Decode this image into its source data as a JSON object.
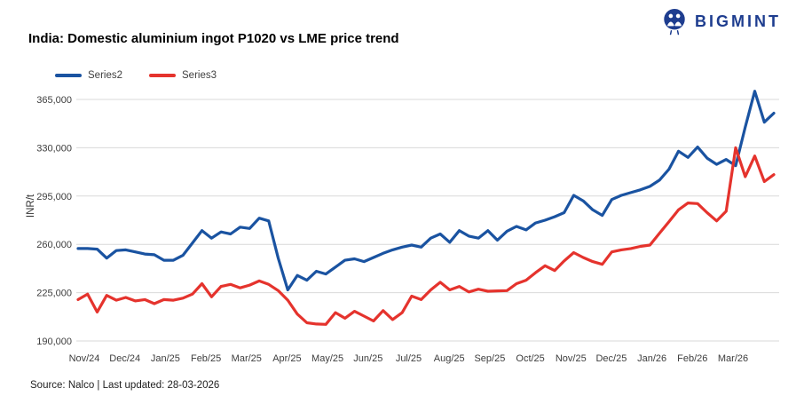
{
  "logo": {
    "text": "BIGMINT",
    "color": "#1E3D8F"
  },
  "title": "India: Domestic aluminium ingot P1020 vs LME price trend",
  "source_note": "Source: Nalco | Last updated: 28-03-2026",
  "chart_data": {
    "type": "line",
    "title": "India: Domestic aluminium ingot P1020 vs LME price trend",
    "ylabel": "INR/t",
    "xlabel": "",
    "ylim": [
      190000,
      365000
    ],
    "grid": true,
    "grid_color": "#D9D9D9",
    "legend_position": "top-left",
    "y_ticks": [
      190000,
      225000,
      260000,
      295000,
      330000,
      365000
    ],
    "y_tick_labels": [
      "190,000",
      "225,000",
      "260,000",
      "295,000",
      "330,000",
      "365,000"
    ],
    "x_labels": [
      "Nov/24",
      "Dec/24",
      "Jan/25",
      "Feb/25",
      "Mar/25",
      "Apr/25",
      "May/25",
      "Jun/25",
      "Jul/25",
      "Aug/25",
      "Sep/25",
      "Oct/25",
      "Nov/25",
      "Dec/25",
      "Jan/26",
      "Feb/26",
      "Mar/26"
    ],
    "x_unit": "weekly points, Nov 2024 - late Mar 2026",
    "series": [
      {
        "name": "Series2",
        "color": "#1A53A1",
        "values": [
          257000,
          257000,
          256500,
          250000,
          255500,
          256000,
          254500,
          253000,
          252500,
          248500,
          248500,
          252000,
          261000,
          270000,
          264500,
          269000,
          267500,
          272500,
          271500,
          279000,
          277000,
          250000,
          227000,
          237500,
          234000,
          240500,
          238500,
          243500,
          248500,
          249500,
          247500,
          250500,
          253500,
          256000,
          258000,
          259500,
          258000,
          264500,
          267500,
          261500,
          270000,
          266000,
          264500,
          270000,
          263000,
          269500,
          273000,
          270500,
          275500,
          277500,
          280000,
          283000,
          295500,
          291500,
          285000,
          281000,
          292500,
          295500,
          297500,
          299500,
          302000,
          306500,
          314500,
          327500,
          323000,
          330500,
          322500,
          318000,
          321500,
          317000,
          345000,
          371000,
          348500,
          355000
        ]
      },
      {
        "name": "Series3",
        "color": "#E5332D",
        "values": [
          220000,
          224000,
          211000,
          223000,
          219500,
          221500,
          219000,
          220000,
          217000,
          220000,
          219500,
          221000,
          224000,
          231500,
          222000,
          229500,
          231000,
          228500,
          230500,
          233500,
          231000,
          226500,
          219500,
          209500,
          203200,
          202300,
          202000,
          210500,
          206500,
          211500,
          208000,
          204500,
          212000,
          205500,
          210500,
          222500,
          220000,
          227000,
          232500,
          227000,
          229500,
          225500,
          227500,
          226000,
          226300,
          226500,
          231500,
          234000,
          239500,
          244500,
          241000,
          248000,
          254000,
          250500,
          247500,
          245500,
          254500,
          256000,
          257000,
          258500,
          259500,
          268000,
          276500,
          285000,
          290000,
          289500,
          283000,
          277000,
          284000,
          330000,
          309000,
          324000,
          305500,
          310500
        ]
      }
    ]
  }
}
